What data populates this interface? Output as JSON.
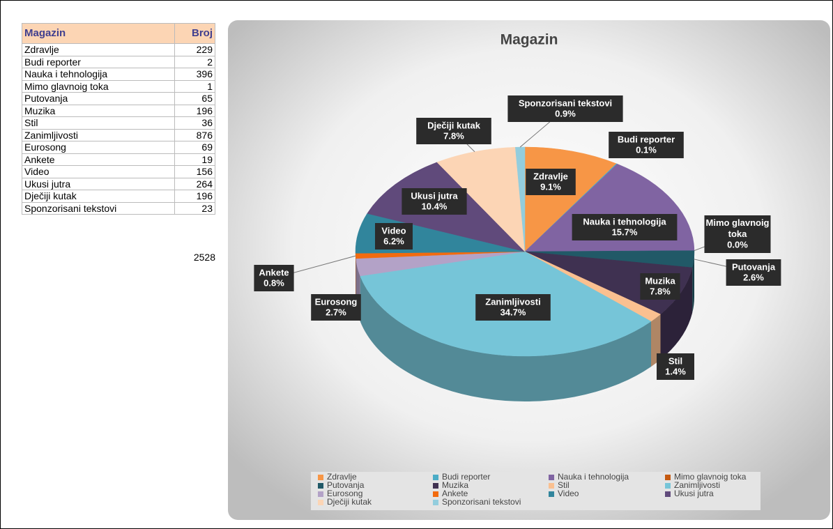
{
  "table": {
    "header": [
      "Magazin",
      "Broj"
    ],
    "rows": [
      [
        "Zdravlje",
        "229"
      ],
      [
        "Budi reporter",
        "2"
      ],
      [
        "Nauka i tehnologija",
        "396"
      ],
      [
        "Mimo glavnoig toka",
        "1"
      ],
      [
        "Putovanja",
        "65"
      ],
      [
        "Muzika",
        "196"
      ],
      [
        "Stil",
        "36"
      ],
      [
        "Zanimljivosti",
        "876"
      ],
      [
        "Eurosong",
        "69"
      ],
      [
        "Ankete",
        "19"
      ],
      [
        "Video",
        "156"
      ],
      [
        "Ukusi jutra",
        "264"
      ],
      [
        "Dječiji kutak",
        "196"
      ],
      [
        "Sponzorisani tekstovi",
        "23"
      ]
    ],
    "total": "2528"
  },
  "chart_data": {
    "type": "pie",
    "title": "Magazin",
    "categories": [
      "Zdravlje",
      "Budi reporter",
      "Nauka i tehnologija",
      "Mimo glavnoig toka",
      "Putovanja",
      "Muzika",
      "Stil",
      "Zanimljivosti",
      "Eurosong",
      "Ankete",
      "Video",
      "Ukusi jutra",
      "Dječiji kutak",
      "Sponzorisani tekstovi"
    ],
    "values": [
      9.1,
      0.1,
      15.7,
      0.0,
      2.6,
      7.8,
      1.4,
      34.7,
      2.7,
      0.8,
      6.2,
      10.4,
      7.8,
      0.9
    ],
    "value_labels": [
      "9.1%",
      "0.1%",
      "15.7%",
      "0.0%",
      "2.6%",
      "7.8%",
      "1.4%",
      "34.7%",
      "2.7%",
      "0.8%",
      "6.2%",
      "10.4%",
      "7.8%",
      "0.9%"
    ],
    "colors": [
      "#f79646",
      "#4bacc6",
      "#8064a2",
      "#c55a11",
      "#215967",
      "#3f3151",
      "#fac090",
      "#76c5d8",
      "#b3a2c7",
      "#f26b0f",
      "#31859c",
      "#604a7b",
      "#fcd5b5",
      "#93cddd"
    ],
    "legend": "bottom"
  }
}
